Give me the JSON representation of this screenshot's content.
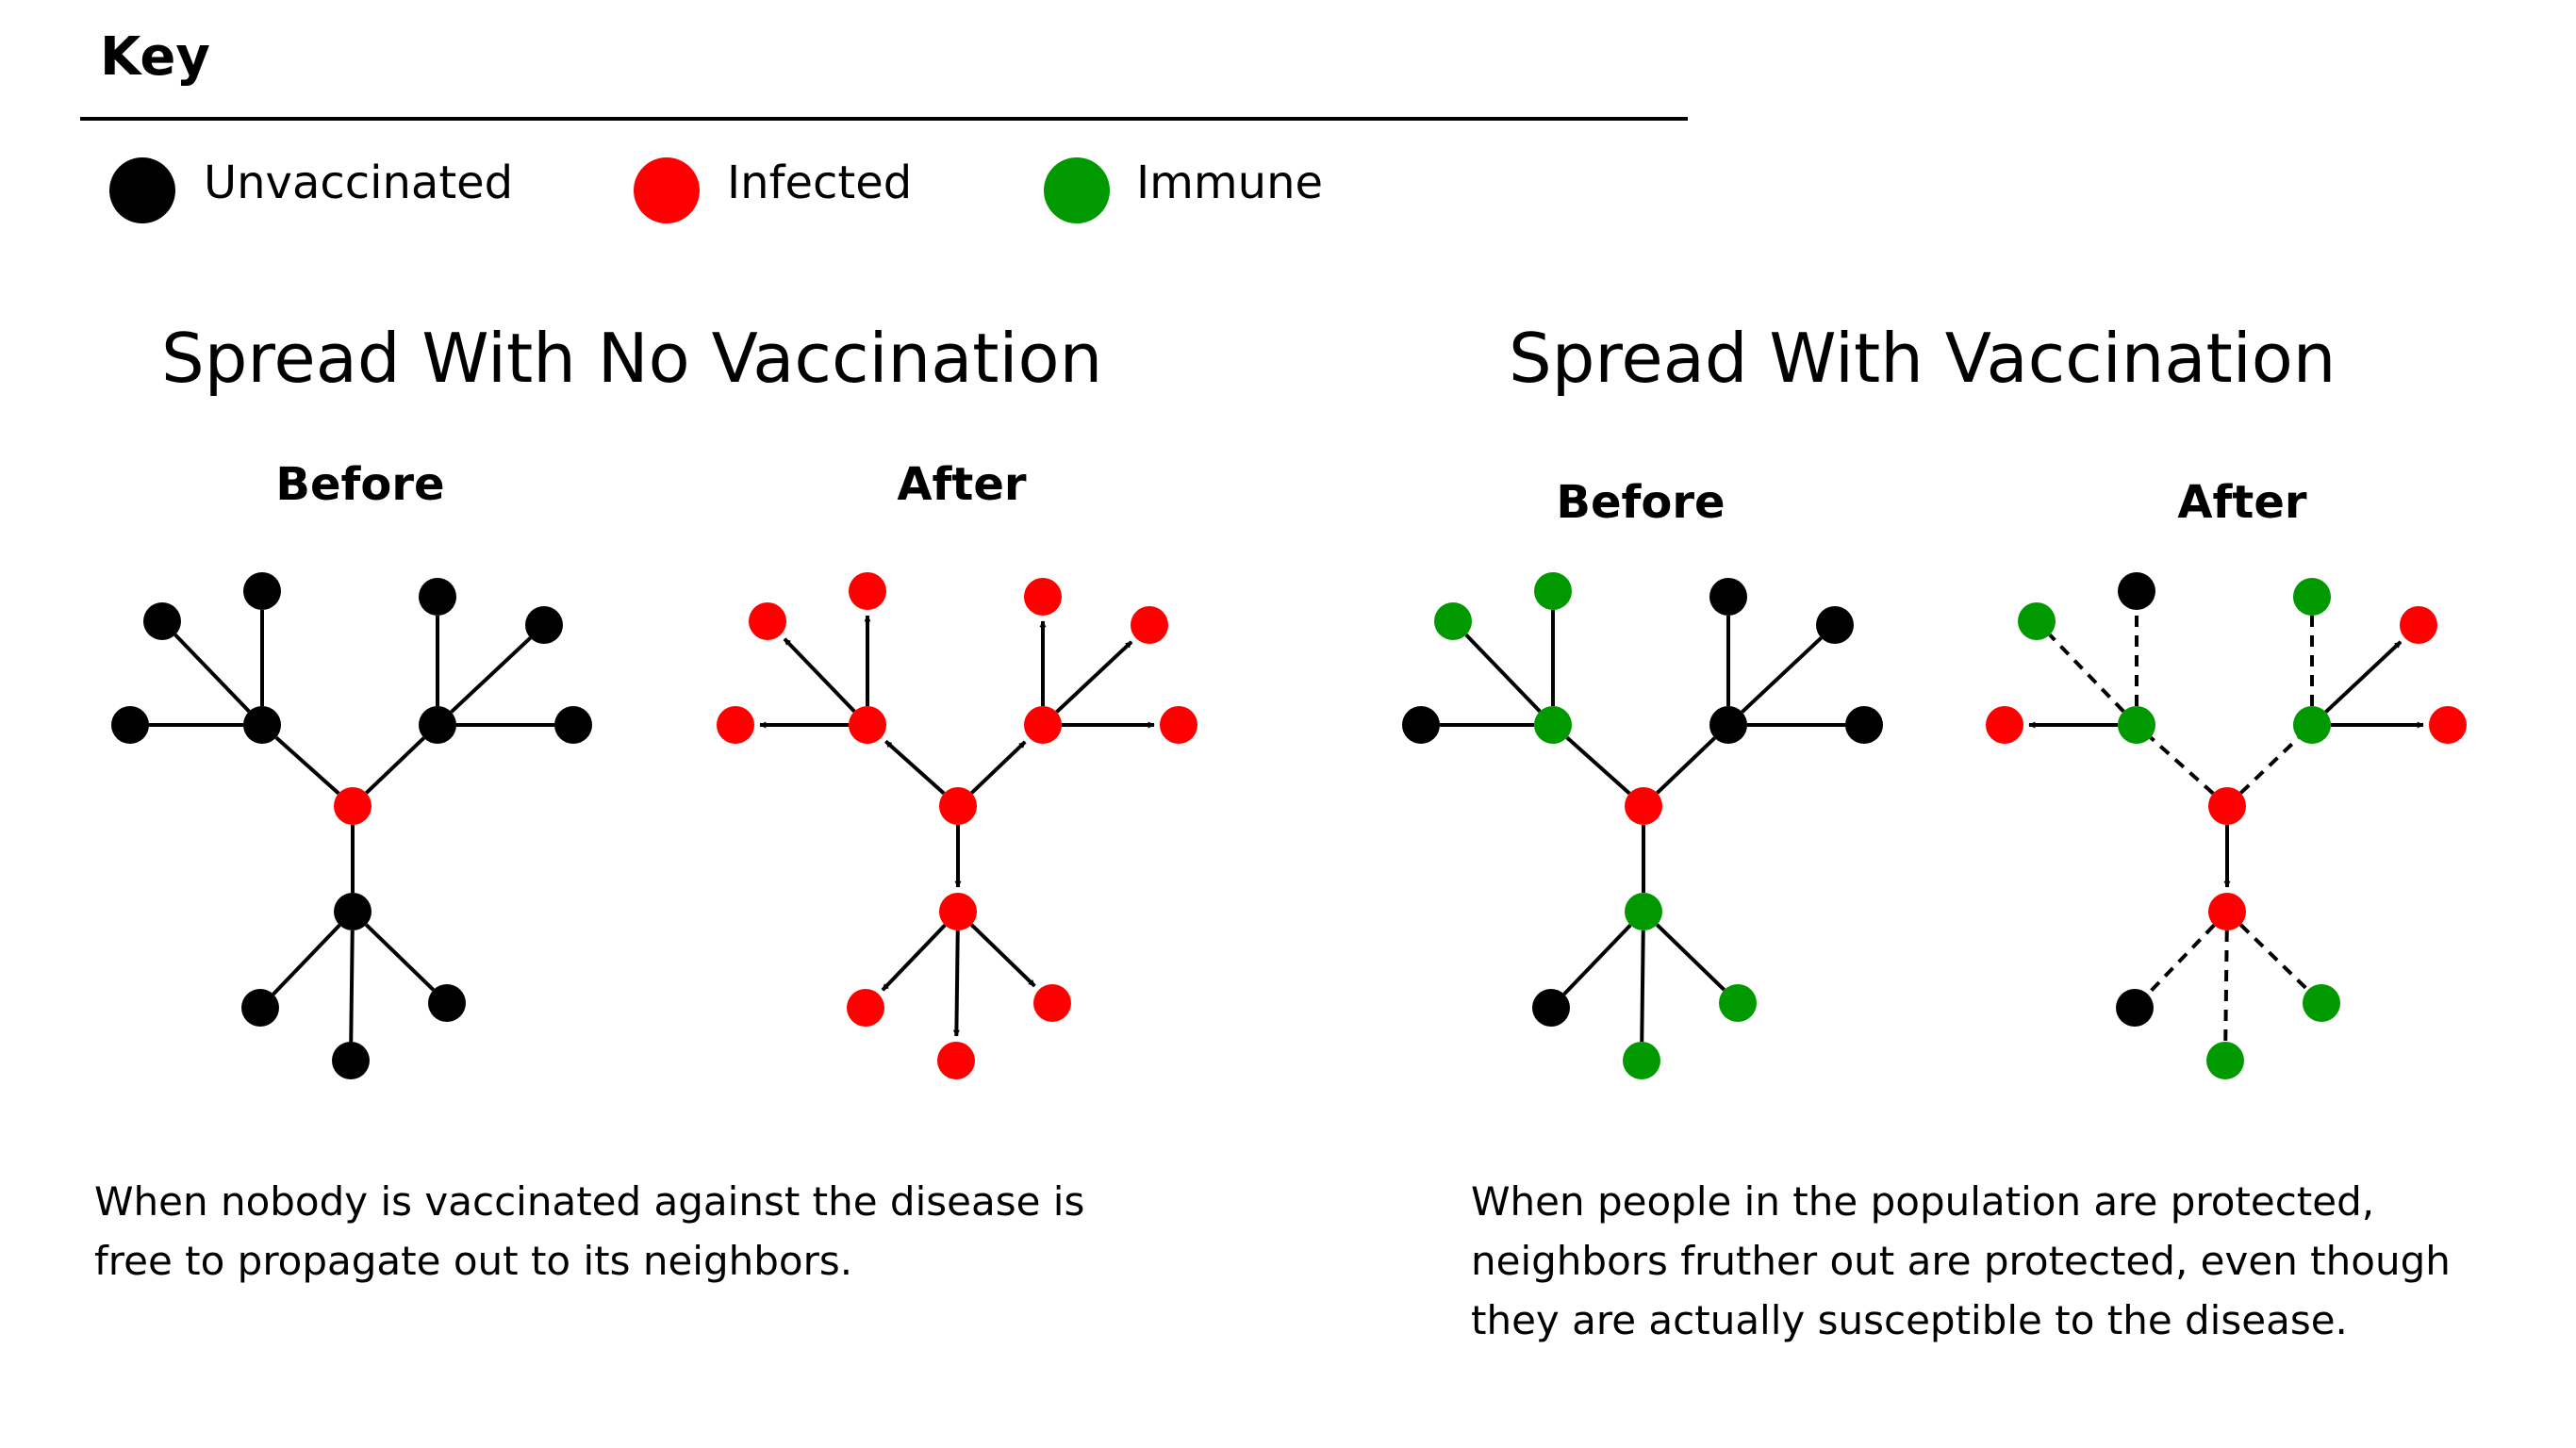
{
  "key": {
    "title": "Key",
    "items": [
      {
        "label": "Unvaccinated",
        "color": "#000000"
      },
      {
        "label": "Infected",
        "color": "#ff0000"
      },
      {
        "label": "Immune",
        "color": "#009900"
      }
    ]
  },
  "sections": [
    {
      "title": "Spread With No Vaccination",
      "before_label": "Before",
      "after_label": "After",
      "caption_lines": [
        "When nobody is vaccinated against the disease is",
        "free to propagate out to its neighbors."
      ]
    },
    {
      "title": "Spread With Vaccination",
      "before_label": "Before",
      "after_label": "After",
      "caption_lines": [
        "When people in the population are protected,",
        "neighbors fruther out are protected, even though",
        "they are actually susceptible to the disease."
      ]
    }
  ],
  "colors": {
    "unvaccinated": "#000000",
    "infected": "#ff0000",
    "immune": "#009900"
  },
  "networks": [
    {
      "panel": "no-vaccination-before",
      "nodes": [
        "infected",
        "unvaccinated",
        "unvaccinated",
        "unvaccinated",
        "unvaccinated",
        "unvaccinated",
        "unvaccinated",
        "unvaccinated",
        "unvaccinated",
        "unvaccinated",
        "unvaccinated",
        "unvaccinated",
        "unvaccinated"
      ],
      "edges": [
        "solid",
        "solid",
        "solid",
        "solid",
        "solid",
        "solid",
        "solid",
        "solid",
        "solid",
        "solid",
        "solid",
        "solid"
      ]
    },
    {
      "panel": "no-vaccination-after",
      "nodes": [
        "infected",
        "infected",
        "infected",
        "infected",
        "infected",
        "infected",
        "infected",
        "infected",
        "infected",
        "infected",
        "infected",
        "infected",
        "infected"
      ],
      "edges": [
        "arrow",
        "arrow",
        "arrow",
        "arrow",
        "arrow",
        "arrow",
        "arrow",
        "arrow",
        "arrow",
        "arrow",
        "arrow",
        "arrow"
      ]
    },
    {
      "panel": "vaccination-before",
      "nodes": [
        "infected",
        "immune",
        "unvaccinated",
        "immune",
        "immune",
        "unvaccinated",
        "unvaccinated",
        "unvaccinated",
        "unvaccinated",
        "immune",
        "unvaccinated",
        "immune",
        "immune"
      ],
      "edges": [
        "solid",
        "solid",
        "solid",
        "solid",
        "solid",
        "solid",
        "solid",
        "solid",
        "solid",
        "solid",
        "solid",
        "solid"
      ]
    },
    {
      "panel": "vaccination-after",
      "nodes": [
        "infected",
        "immune",
        "infected",
        "immune",
        "unvaccinated",
        "immune",
        "immune",
        "infected",
        "infected",
        "infected",
        "unvaccinated",
        "immune",
        "immune"
      ],
      "edges": [
        "dashed",
        "arrow",
        "dashed",
        "dashed",
        "dashed",
        "dashed",
        "arrow",
        "arrow",
        "arrow",
        "dashed",
        "dashed",
        "dashed"
      ]
    }
  ]
}
